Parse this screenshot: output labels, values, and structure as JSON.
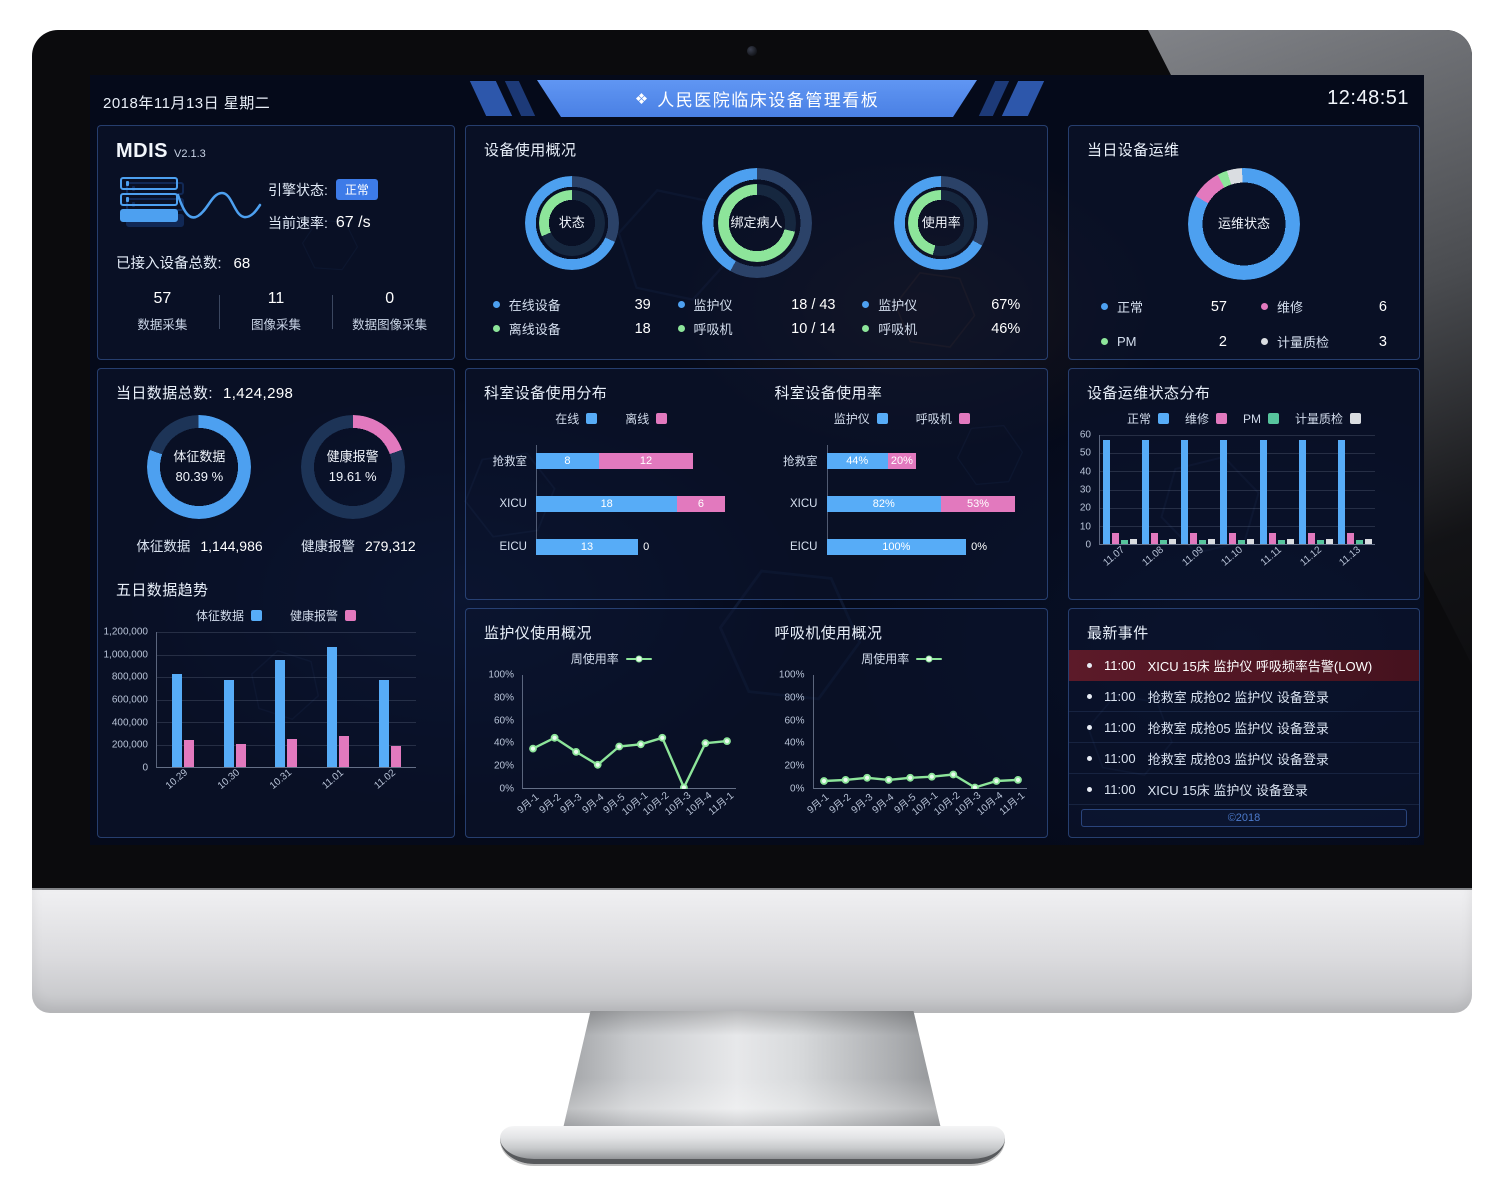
{
  "frame": {
    "date": "2018年11月13日 星期二",
    "title": "人民医院临床设备管理看板",
    "title_icon": "❖",
    "time": "12:48:51"
  },
  "colors": {
    "blue": "#4DA0F0",
    "barBlue": "#57ACF7",
    "pink": "#E279BE",
    "green": "#8DE59A",
    "teal": "#57C59D",
    "gray": "#DADDE1",
    "track": "#1D3457",
    "trackO": "#2B4268",
    "trackI": "#16273F"
  },
  "mdis": {
    "title": "MDIS",
    "version": "V2.1.3",
    "engine_label": "引擎状态:",
    "engine_status": "正常",
    "rate_label": "当前速率:",
    "rate_value": "67 /s",
    "total_label": "已接入设备总数:",
    "total_value": "68",
    "stats": [
      {
        "value": "57",
        "label": "数据采集"
      },
      {
        "value": "11",
        "label": "图像采集"
      },
      {
        "value": "0",
        "label": "数据图像采集"
      }
    ]
  },
  "daily": {
    "title": "当日数据总数:",
    "total": "1,424,298",
    "donuts": [
      {
        "ring": {
          "from": -71,
          "stops": [
            [
              "track",
              19.61
            ],
            [
              "blue",
              80.39
            ]
          ]
        },
        "center": [
          "体征数据",
          "80.39 %"
        ]
      },
      {
        "ring": {
          "from": 0,
          "stops": [
            [
              "pink",
              19.61
            ],
            [
              "track",
              80.39
            ]
          ]
        },
        "center": [
          "健康报警",
          "19.61 %"
        ]
      }
    ],
    "counts": [
      {
        "label": "体征数据",
        "value": "1,144,986"
      },
      {
        "label": "健康报警",
        "value": "279,312"
      }
    ]
  },
  "trend": {
    "title": "五日数据趋势",
    "legend": [
      {
        "label": "体征数据",
        "color": "barBlue"
      },
      {
        "label": "健康报警",
        "color": "pink"
      }
    ],
    "chart": {
      "type": "bar",
      "categories": [
        "10.29",
        "10.30",
        "10.31",
        "11.01",
        "11.02"
      ],
      "ymax": 1200000,
      "yticks": [
        "1,200,000",
        "1,000,000",
        "800,000",
        "600,000",
        "400,000",
        "200,000",
        "0"
      ],
      "series": [
        {
          "name": "体征数据",
          "color": "barBlue",
          "values": [
            830000,
            770000,
            955000,
            1070000,
            770000
          ]
        },
        {
          "name": "健康报警",
          "color": "pink",
          "values": [
            240000,
            205000,
            245000,
            275000,
            185000
          ]
        }
      ]
    }
  },
  "usage": {
    "title": "设备使用概况",
    "donuts": [
      {
        "center": "状态",
        "big": false,
        "outer": {
          "from": 0,
          "stops": [
            [
              "trackO",
              31.6
            ],
            [
              "blue",
              68.4
            ]
          ]
        },
        "inner": {
          "from": 0,
          "stops": [
            [
              "trackI",
              68.4
            ],
            [
              "green",
              31.6
            ]
          ]
        },
        "legend": [
          {
            "color": "blue",
            "label": "在线设备",
            "value": "39"
          },
          {
            "color": "green",
            "label": "离线设备",
            "value": "18"
          }
        ]
      },
      {
        "center": "绑定病人",
        "big": true,
        "outer": {
          "from": 0,
          "stops": [
            [
              "trackO",
              58.1
            ],
            [
              "blue",
              41.9
            ]
          ]
        },
        "inner": {
          "from": 0,
          "stops": [
            [
              "trackI",
              28.6
            ],
            [
              "green",
              71.4
            ]
          ]
        },
        "legend": [
          {
            "color": "blue",
            "label": "监护仪",
            "value": "18 / 43"
          },
          {
            "color": "green",
            "label": "呼吸机",
            "value": "10 / 14"
          }
        ]
      },
      {
        "center": "使用率",
        "big": false,
        "outer": {
          "from": 0,
          "stops": [
            [
              "trackO",
              33
            ],
            [
              "blue",
              67
            ]
          ]
        },
        "inner": {
          "from": 0,
          "stops": [
            [
              "trackI",
              54
            ],
            [
              "green",
              46
            ]
          ]
        },
        "legend": [
          {
            "color": "blue",
            "label": "监护仪",
            "value": "67%"
          },
          {
            "color": "green",
            "label": "呼吸机",
            "value": "46%"
          }
        ]
      }
    ]
  },
  "dist": {
    "title": "科室设备使用分布",
    "legend": [
      {
        "label": "在线",
        "color": "barBlue"
      },
      {
        "label": "离线",
        "color": "pink"
      }
    ],
    "scale": 24,
    "rows": [
      {
        "label": "抢救室",
        "segs": [
          {
            "color": "barBlue",
            "value": 8,
            "text": "8"
          },
          {
            "color": "pink",
            "value": 12,
            "text": "12"
          }
        ]
      },
      {
        "label": "XICU",
        "segs": [
          {
            "color": "barBlue",
            "value": 18,
            "text": "18"
          },
          {
            "color": "pink",
            "value": 6,
            "text": "6"
          }
        ]
      },
      {
        "label": "EICU",
        "segs": [
          {
            "color": "barBlue",
            "value": 13,
            "text": "13"
          },
          {
            "color": "pink",
            "value": 0,
            "text": "0"
          }
        ]
      }
    ]
  },
  "rate": {
    "title": "科室设备使用率",
    "legend": [
      {
        "label": "监护仪",
        "color": "barBlue"
      },
      {
        "label": "呼吸机",
        "color": "pink"
      }
    ],
    "scale": 135,
    "rows": [
      {
        "label": "抢救室",
        "segs": [
          {
            "color": "barBlue",
            "value": 44,
            "text": "44%"
          },
          {
            "color": "pink",
            "value": 20,
            "text": "20%"
          }
        ]
      },
      {
        "label": "XICU",
        "segs": [
          {
            "color": "barBlue",
            "value": 82,
            "text": "82%"
          },
          {
            "color": "pink",
            "value": 53,
            "text": "53%"
          }
        ]
      },
      {
        "label": "EICU",
        "segs": [
          {
            "color": "barBlue",
            "value": 100,
            "text": "100%"
          },
          {
            "color": "pink",
            "value": 0,
            "text": "0%"
          }
        ]
      }
    ]
  },
  "mon": {
    "title": "监护仪使用概况",
    "legend": [
      {
        "label": "周使用率",
        "color": "green",
        "shape": "line"
      }
    ],
    "chart": {
      "type": "line",
      "color": "green",
      "ymax": 100,
      "yticks": [
        "100%",
        "80%",
        "60%",
        "40%",
        "20%",
        "0%"
      ],
      "x": [
        "9月-1",
        "9月-2",
        "9月-3",
        "9月-4",
        "9月-5",
        "10月-1",
        "10月-2",
        "10月-3",
        "10月-4",
        "11月-1"
      ],
      "values": [
        36,
        46,
        33,
        21,
        38,
        40,
        46,
        0,
        41,
        43
      ]
    }
  },
  "vent": {
    "title": "呼吸机使用概况",
    "legend": [
      {
        "label": "周使用率",
        "color": "green",
        "shape": "line"
      }
    ],
    "chart": {
      "type": "line",
      "color": "green",
      "ymax": 100,
      "yticks": [
        "100%",
        "80%",
        "60%",
        "40%",
        "20%",
        "0%"
      ],
      "x": [
        "9月-1",
        "9月-2",
        "9月-3",
        "9月-4",
        "9月-5",
        "10月-1",
        "10月-2",
        "10月-3",
        "10月-4",
        "11月-1"
      ],
      "values": [
        6,
        7,
        9,
        7,
        9,
        10,
        12,
        0,
        6,
        7
      ]
    }
  },
  "ops1": {
    "title": "当日设备运维",
    "ring": {
      "from": -60,
      "stops": [
        [
          "pink",
          8.8
        ],
        [
          "green",
          2.9
        ],
        [
          "gray",
          4.4
        ],
        [
          "blue",
          83.9
        ]
      ]
    },
    "center": [
      "运维状态"
    ],
    "legend": [
      {
        "color": "blue",
        "label": "正常",
        "value": "57"
      },
      {
        "color": "pink",
        "label": "维修",
        "value": "6"
      },
      {
        "color": "green",
        "label": "PM",
        "value": "2"
      },
      {
        "color": "gray",
        "label": "计量质检",
        "value": "3"
      }
    ]
  },
  "ops2": {
    "title": "设备运维状态分布",
    "legend": [
      {
        "label": "正常",
        "color": "barBlue"
      },
      {
        "label": "维修",
        "color": "pink"
      },
      {
        "label": "PM",
        "color": "teal"
      },
      {
        "label": "计量质检",
        "color": "gray"
      }
    ],
    "chart": {
      "type": "bar",
      "categories": [
        "11.07",
        "11.08",
        "11.09",
        "11.10",
        "11.11",
        "11.12",
        "11.13"
      ],
      "ymax": 60,
      "yticks": [
        "60",
        "50",
        "40",
        "30",
        "20",
        "10",
        "0"
      ],
      "series": [
        {
          "name": "正常",
          "color": "barBlue",
          "values": [
            57,
            57,
            57,
            57,
            57,
            57,
            57
          ]
        },
        {
          "name": "维修",
          "color": "pink",
          "values": [
            6,
            6,
            6,
            6,
            6,
            6,
            6
          ]
        },
        {
          "name": "PM",
          "color": "teal",
          "values": [
            2,
            2,
            2,
            2,
            2,
            2,
            2
          ]
        },
        {
          "name": "计量质检",
          "color": "gray",
          "values": [
            3,
            3,
            3,
            3,
            3,
            3,
            3
          ]
        }
      ]
    }
  },
  "events": {
    "title": "最新事件",
    "copyright": "©2018",
    "items": [
      {
        "time": "11:00",
        "text": "XICU 15床 监护仪 呼吸频率告警(LOW)",
        "alert": true
      },
      {
        "time": "11:00",
        "text": "抢救室 成抢02 监护仪 设备登录",
        "alert": false
      },
      {
        "time": "11:00",
        "text": "抢救室 成抢05 监护仪 设备登录",
        "alert": false
      },
      {
        "time": "11:00",
        "text": "抢救室 成抢03 监护仪 设备登录",
        "alert": false
      },
      {
        "time": "11:00",
        "text": "XICU 15床 监护仪 设备登录",
        "alert": false
      }
    ]
  }
}
